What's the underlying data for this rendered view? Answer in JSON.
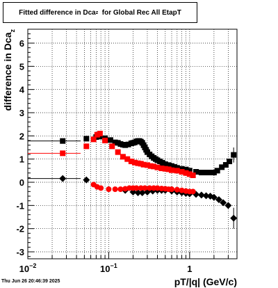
{
  "title": {
    "main": "Fitted difference in Dca",
    "sub": "z",
    "suffix": "  for Global Rec All EtapT"
  },
  "footer": {
    "timestamp": "Thu Jun 26 20:46:39 2025"
  },
  "colors": {
    "frame": "#000000",
    "grid": "#000000",
    "series_black": "#000000",
    "series_red": "#ff0000"
  },
  "chart_data": {
    "type": "scatter",
    "xlabel": "pT/|q| (GeV/c)",
    "ylabel": "difference in Dca",
    "ylabel_sub": "z",
    "xscale": "log",
    "xlim": [
      0.01,
      3.85
    ],
    "ylim": [
      -3.3,
      6.6
    ],
    "grid": true,
    "x_ticks": [
      {
        "value": 0.01,
        "base": "10",
        "exp": "−2"
      },
      {
        "value": 0.1,
        "base": "10",
        "exp": "−1"
      },
      {
        "value": 1,
        "base": "1",
        "exp": ""
      }
    ],
    "y_ticks": [
      -3,
      -2,
      -1,
      0,
      1,
      2,
      3,
      4,
      5,
      6
    ],
    "series": [
      {
        "color": "#000000",
        "marker": "square",
        "x": [
          0.027,
          0.053,
          0.07,
          0.077,
          0.09,
          0.105,
          0.12,
          0.13,
          0.14,
          0.15,
          0.16,
          0.175,
          0.19,
          0.2,
          0.21,
          0.22,
          0.23,
          0.24,
          0.25,
          0.26,
          0.27,
          0.28,
          0.29,
          0.3,
          0.32,
          0.34,
          0.36,
          0.38,
          0.4,
          0.43,
          0.46,
          0.5,
          0.55,
          0.6,
          0.65,
          0.7,
          0.8,
          0.9,
          1.0,
          1.2,
          1.4,
          1.6,
          1.8,
          2.0,
          2.2,
          2.5,
          2.8,
          3.1,
          3.5
        ],
        "y": [
          1.78,
          1.88,
          1.95,
          1.97,
          1.9,
          1.82,
          1.72,
          1.7,
          1.65,
          1.62,
          1.6,
          1.63,
          1.68,
          1.7,
          1.72,
          1.76,
          1.78,
          1.78,
          1.75,
          1.7,
          1.6,
          1.5,
          1.4,
          1.3,
          1.2,
          1.12,
          1.05,
          1.0,
          0.95,
          0.9,
          0.84,
          0.78,
          0.74,
          0.7,
          0.66,
          0.62,
          0.58,
          0.55,
          0.5,
          0.45,
          0.42,
          0.42,
          0.42,
          0.42,
          0.5,
          0.65,
          0.75,
          0.9,
          1.18
        ]
      },
      {
        "color": "#ff0000",
        "marker": "square",
        "x": [
          0.027,
          0.053,
          0.065,
          0.072,
          0.078,
          0.09,
          0.11,
          0.13,
          0.15,
          0.17,
          0.19,
          0.21,
          0.23,
          0.25,
          0.27,
          0.3,
          0.33,
          0.36,
          0.4,
          0.45,
          0.5,
          0.55,
          0.6,
          0.7,
          0.8,
          0.9,
          1.0,
          1.1
        ],
        "y": [
          1.25,
          1.55,
          1.85,
          2.05,
          2.1,
          1.8,
          1.55,
          1.3,
          1.1,
          1.0,
          0.9,
          0.85,
          0.82,
          0.8,
          0.76,
          0.74,
          0.7,
          0.68,
          0.64,
          0.6,
          0.58,
          0.56,
          0.52,
          0.5,
          0.45,
          0.4,
          0.35,
          0.3
        ]
      },
      {
        "color": "#000000",
        "marker": "diamond",
        "x": [
          0.027,
          0.053,
          0.16,
          0.2,
          0.23,
          0.26,
          0.3,
          0.35,
          0.4,
          0.45,
          0.5,
          0.6,
          0.7,
          0.8,
          0.9,
          1.0,
          1.2,
          1.4,
          1.6,
          1.8,
          2.0,
          2.3,
          2.6,
          3.0,
          3.5
        ],
        "y": [
          0.16,
          0.1,
          -0.35,
          -0.42,
          -0.45,
          -0.45,
          -0.42,
          -0.38,
          -0.35,
          -0.35,
          -0.35,
          -0.38,
          -0.42,
          -0.45,
          -0.48,
          -0.5,
          -0.52,
          -0.55,
          -0.58,
          -0.6,
          -0.65,
          -0.75,
          -0.88,
          -1.0,
          -1.55
        ]
      },
      {
        "color": "#ff0000",
        "marker": "circle",
        "x": [
          0.065,
          0.072,
          0.08,
          0.1,
          0.12,
          0.14,
          0.16,
          0.18,
          0.2,
          0.22,
          0.25,
          0.28,
          0.32,
          0.36,
          0.4,
          0.45,
          0.5,
          0.55,
          0.6,
          0.7,
          0.8,
          0.9,
          1.0,
          1.1
        ],
        "y": [
          -0.1,
          -0.2,
          -0.25,
          -0.3,
          -0.3,
          -0.3,
          -0.28,
          -0.25,
          -0.25,
          -0.25,
          -0.25,
          -0.25,
          -0.25,
          -0.25,
          -0.25,
          -0.27,
          -0.28,
          -0.3,
          -0.3,
          -0.32,
          -0.35,
          -0.38,
          -0.4,
          -0.4
        ]
      }
    ]
  }
}
